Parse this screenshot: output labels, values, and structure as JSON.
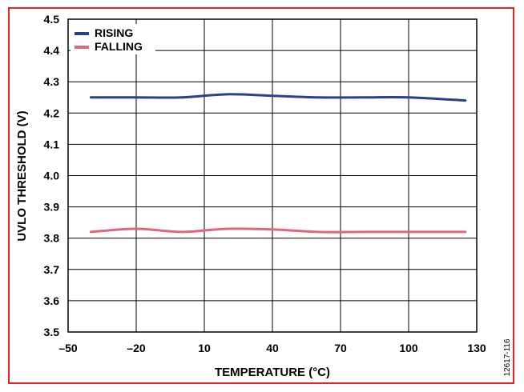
{
  "chart_data": {
    "type": "line",
    "title": "",
    "xlabel": "TEMPERATURE (°C)",
    "ylabel": "UVLO THRESHOLD (V)",
    "xlim": [
      -50,
      130
    ],
    "ylim": [
      3.5,
      4.5
    ],
    "x_ticks": [
      -50,
      -20,
      10,
      40,
      70,
      100,
      130
    ],
    "x_tick_labels": [
      "–50",
      "–20",
      "10",
      "40",
      "70",
      "100",
      "130"
    ],
    "y_ticks": [
      3.5,
      3.6,
      3.7,
      3.8,
      3.9,
      4.0,
      4.1,
      4.2,
      4.3,
      4.4,
      4.5
    ],
    "y_tick_labels": [
      "3.5",
      "3.6",
      "3.7",
      "3.8",
      "3.9",
      "4.0",
      "4.1",
      "4.2",
      "4.3",
      "4.4",
      "4.5"
    ],
    "grid": true,
    "legend_position": "top-left",
    "series": [
      {
        "name": "RISING",
        "color": "#2b3f8c",
        "x": [
          -40,
          -20,
          0,
          20,
          40,
          60,
          80,
          100,
          125
        ],
        "y": [
          4.25,
          4.25,
          4.25,
          4.26,
          4.255,
          4.25,
          4.25,
          4.25,
          4.24
        ]
      },
      {
        "name": "FALLING",
        "color": "#e0657f",
        "x": [
          -40,
          -20,
          0,
          20,
          40,
          60,
          80,
          100,
          125
        ],
        "y": [
          3.82,
          3.83,
          3.82,
          3.83,
          3.828,
          3.82,
          3.82,
          3.82,
          3.82
        ]
      }
    ]
  },
  "figure_id": "12617-116",
  "colors": {
    "frame": "#e8202a"
  }
}
